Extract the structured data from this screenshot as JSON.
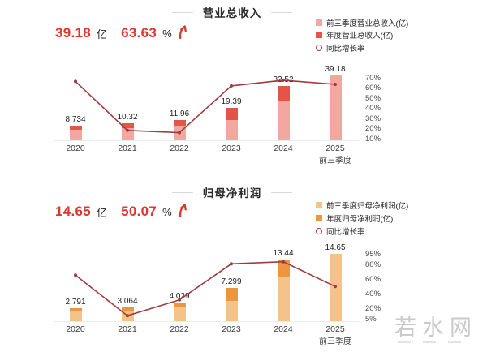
{
  "watermark": {
    "text": "若水网"
  },
  "chart_data": [
    {
      "type": "bar+line",
      "title": "营业总收入",
      "stat": {
        "value": "39.18",
        "unit": "亿",
        "growth": "63.63",
        "growth_unit": "%",
        "trend_icon": "up-arrow"
      },
      "legend": [
        {
          "label": "前三季度营业总收入(亿)",
          "swatch": "light-bar"
        },
        {
          "label": "年度营业总收入(亿)",
          "swatch": "dark-bar"
        },
        {
          "label": "同比增长率",
          "swatch": "line-circle"
        }
      ],
      "colors": {
        "light": "#f2a8a1",
        "dark": "#e2564a",
        "line": "#a03b42"
      },
      "categories": [
        "2020",
        "2021",
        "2022",
        "2023",
        "2024",
        "2025"
      ],
      "last_category_sublabel": "前三季度",
      "series": [
        {
          "name": "前三季度营业总收入(亿)",
          "values": [
            6.3,
            7.4,
            8.6,
            12.4,
            23.9,
            39.18
          ]
        },
        {
          "name": "年度营业总收入(亿)",
          "values": [
            8.734,
            10.32,
            11.96,
            19.39,
            32.52,
            null
          ]
        }
      ],
      "bar_labels": [
        "8.734",
        "10.32",
        "11.96",
        "19.39",
        "32.52",
        "39.18"
      ],
      "growth_line_pct": [
        66.5,
        18.2,
        15.9,
        62.1,
        67.7,
        63.63
      ],
      "right_axis_ticks": [
        "70%",
        "60%",
        "50%",
        "40%",
        "30%",
        "20%",
        "10%"
      ],
      "right_axis_range": [
        10,
        70
      ],
      "bar_axis_max": 40,
      "grid": false,
      "legend_position": "top-right"
    },
    {
      "type": "bar+line",
      "title": "归母净利润",
      "stat": {
        "value": "14.65",
        "unit": "亿",
        "growth": "50.07",
        "growth_unit": "%",
        "trend_icon": "up-arrow"
      },
      "legend": [
        {
          "label": "前三季度归母净利润(亿)",
          "swatch": "light-bar"
        },
        {
          "label": "年度归母净利润(亿)",
          "swatch": "dark-bar"
        },
        {
          "label": "同比增长率",
          "swatch": "line-circle"
        }
      ],
      "colors": {
        "light": "#f5c28a",
        "dark": "#ee9540",
        "line": "#a03b42"
      },
      "categories": [
        "2020",
        "2021",
        "2022",
        "2023",
        "2024",
        "2025"
      ],
      "last_category_sublabel": "前三季度",
      "series": [
        {
          "name": "前三季度归母净利润(亿)",
          "values": [
            2.05,
            2.25,
            2.95,
            4.35,
            9.76,
            14.65
          ]
        },
        {
          "name": "年度归母净利润(亿)",
          "values": [
            2.791,
            3.064,
            4.029,
            7.299,
            13.44,
            null
          ]
        }
      ],
      "bar_labels": [
        "2.791",
        "3.064",
        "4.029",
        "7.299",
        "13.44",
        "14.65"
      ],
      "growth_line_pct": [
        65.6,
        9.8,
        31.5,
        81.2,
        84.1,
        50.07
      ],
      "right_axis_ticks": [
        "95%",
        "80%",
        "60%",
        "40%",
        "20%",
        "5%"
      ],
      "right_axis_range": [
        5,
        95
      ],
      "bar_axis_max": 15.5,
      "grid": false,
      "legend_position": "top-right"
    }
  ]
}
